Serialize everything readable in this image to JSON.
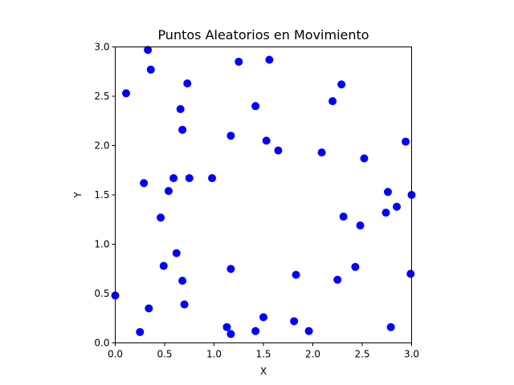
{
  "chart_data": {
    "type": "scatter",
    "title": "Puntos Aleatorios en Movimiento",
    "xlabel": "X",
    "ylabel": "Y",
    "xlim": [
      0,
      3
    ],
    "ylim": [
      0,
      3
    ],
    "xticks": [
      "0.0",
      "0.5",
      "1.0",
      "1.5",
      "2.0",
      "2.5",
      "3.0"
    ],
    "yticks": [
      "0.0",
      "0.5",
      "1.0",
      "1.5",
      "2.0",
      "2.5",
      "3.0"
    ],
    "grid": false,
    "marker_color": "#0000ff",
    "points": [
      {
        "x": 0.33,
        "y": 2.97
      },
      {
        "x": 1.56,
        "y": 2.87
      },
      {
        "x": 1.25,
        "y": 2.85
      },
      {
        "x": 0.36,
        "y": 2.77
      },
      {
        "x": 0.73,
        "y": 2.63
      },
      {
        "x": 2.29,
        "y": 2.62
      },
      {
        "x": 0.11,
        "y": 2.53
      },
      {
        "x": 2.2,
        "y": 2.45
      },
      {
        "x": 1.42,
        "y": 2.4
      },
      {
        "x": 0.66,
        "y": 2.37
      },
      {
        "x": 0.68,
        "y": 2.16
      },
      {
        "x": 1.17,
        "y": 2.1
      },
      {
        "x": 1.53,
        "y": 2.05
      },
      {
        "x": 2.94,
        "y": 2.04
      },
      {
        "x": 1.65,
        "y": 1.95
      },
      {
        "x": 2.09,
        "y": 1.93
      },
      {
        "x": 2.52,
        "y": 1.87
      },
      {
        "x": 0.59,
        "y": 1.67
      },
      {
        "x": 0.75,
        "y": 1.67
      },
      {
        "x": 0.98,
        "y": 1.67
      },
      {
        "x": 0.29,
        "y": 1.62
      },
      {
        "x": 0.54,
        "y": 1.54
      },
      {
        "x": 2.76,
        "y": 1.53
      },
      {
        "x": 3.0,
        "y": 1.5
      },
      {
        "x": 2.85,
        "y": 1.38
      },
      {
        "x": 2.74,
        "y": 1.32
      },
      {
        "x": 0.46,
        "y": 1.27
      },
      {
        "x": 2.31,
        "y": 1.28
      },
      {
        "x": 2.48,
        "y": 1.19
      },
      {
        "x": 0.62,
        "y": 0.91
      },
      {
        "x": 0.49,
        "y": 0.78
      },
      {
        "x": 2.43,
        "y": 0.77
      },
      {
        "x": 1.17,
        "y": 0.75
      },
      {
        "x": 1.83,
        "y": 0.69
      },
      {
        "x": 2.99,
        "y": 0.7
      },
      {
        "x": 0.68,
        "y": 0.63
      },
      {
        "x": 2.25,
        "y": 0.64
      },
      {
        "x": 0.0,
        "y": 0.48
      },
      {
        "x": 0.7,
        "y": 0.39
      },
      {
        "x": 0.34,
        "y": 0.35
      },
      {
        "x": 1.5,
        "y": 0.26
      },
      {
        "x": 1.81,
        "y": 0.22
      },
      {
        "x": 1.13,
        "y": 0.16
      },
      {
        "x": 2.79,
        "y": 0.16
      },
      {
        "x": 0.25,
        "y": 0.11
      },
      {
        "x": 1.42,
        "y": 0.12
      },
      {
        "x": 1.96,
        "y": 0.12
      },
      {
        "x": 1.17,
        "y": 0.09
      }
    ]
  }
}
